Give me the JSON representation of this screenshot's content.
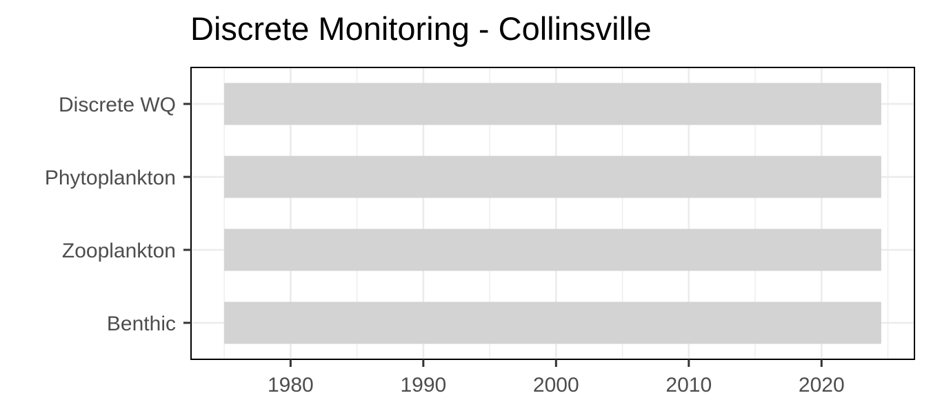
{
  "chart_data": {
    "type": "bar",
    "orientation": "horizontal",
    "title": "Discrete Monitoring - Collinsville",
    "xlabel": "",
    "ylabel": "",
    "categories": [
      "Discrete WQ",
      "Phytoplankton",
      "Zooplankton",
      "Benthic"
    ],
    "ranges": [
      {
        "category": "Discrete WQ",
        "start": 1975,
        "end": 2024.5
      },
      {
        "category": "Phytoplankton",
        "start": 1975,
        "end": 2024.5
      },
      {
        "category": "Zooplankton",
        "start": 1975,
        "end": 2024.5
      },
      {
        "category": "Benthic",
        "start": 1975,
        "end": 2024.5
      }
    ],
    "x_ticks": [
      1980,
      1990,
      2000,
      2010,
      2020
    ],
    "x_minor_ticks": [
      1975,
      1985,
      1995,
      2005,
      2015,
      2025
    ],
    "xlim": [
      1972.5,
      2027.0
    ],
    "grid": true,
    "legend": "none",
    "colors": {
      "bar": "#d3d3d3",
      "grid": "#ebebeb",
      "panel_border": "#000000",
      "text": "#4d4d4d"
    }
  }
}
